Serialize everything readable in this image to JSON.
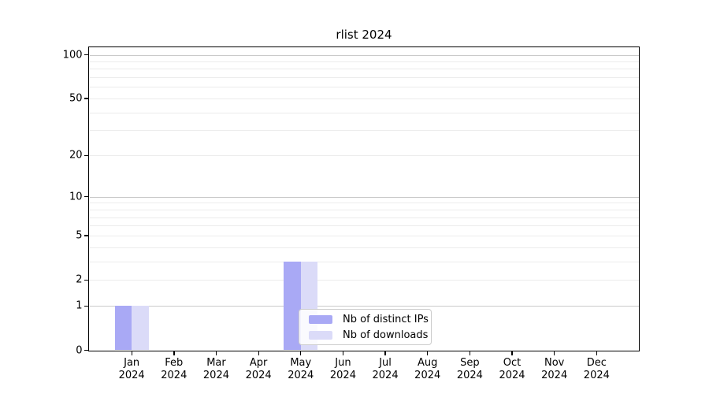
{
  "page": {
    "background": "#ffffff"
  },
  "chart_data": {
    "type": "bar",
    "title": "rlist 2024",
    "x_categories": [
      "Jan",
      "Feb",
      "Mar",
      "Apr",
      "May",
      "Jun",
      "Jul",
      "Aug",
      "Sep",
      "Oct",
      "Nov",
      "Dec"
    ],
    "x_year": "2024",
    "series": [
      {
        "name": "Nb of distinct IPs",
        "color": "#a9a9f5",
        "values": [
          1,
          0,
          0,
          0,
          3,
          0,
          0,
          0,
          0,
          0,
          0,
          0
        ]
      },
      {
        "name": "Nb of downloads",
        "color": "#dbdbf8",
        "values": [
          1,
          0,
          0,
          0,
          3,
          0,
          0,
          0,
          0,
          0,
          0,
          0
        ]
      }
    ],
    "y_scale": "log10(1+value)",
    "y_ticks": [
      0,
      1,
      2,
      5,
      10,
      20,
      50,
      100
    ],
    "y_gridlines_major": [
      1,
      10,
      100
    ],
    "y_gridlines_minor": [
      2,
      3,
      4,
      5,
      6,
      7,
      8,
      9,
      20,
      30,
      40,
      50,
      60,
      70,
      80,
      90
    ],
    "ylim": [
      0,
      112
    ],
    "grid": true,
    "legend": {
      "location": "lower center",
      "border_color": "#cccccc"
    },
    "colors": {
      "axis": "#000000",
      "text": "#000000",
      "major_grid": "#c9c9c9",
      "minor_grid": "#ececec"
    }
  }
}
